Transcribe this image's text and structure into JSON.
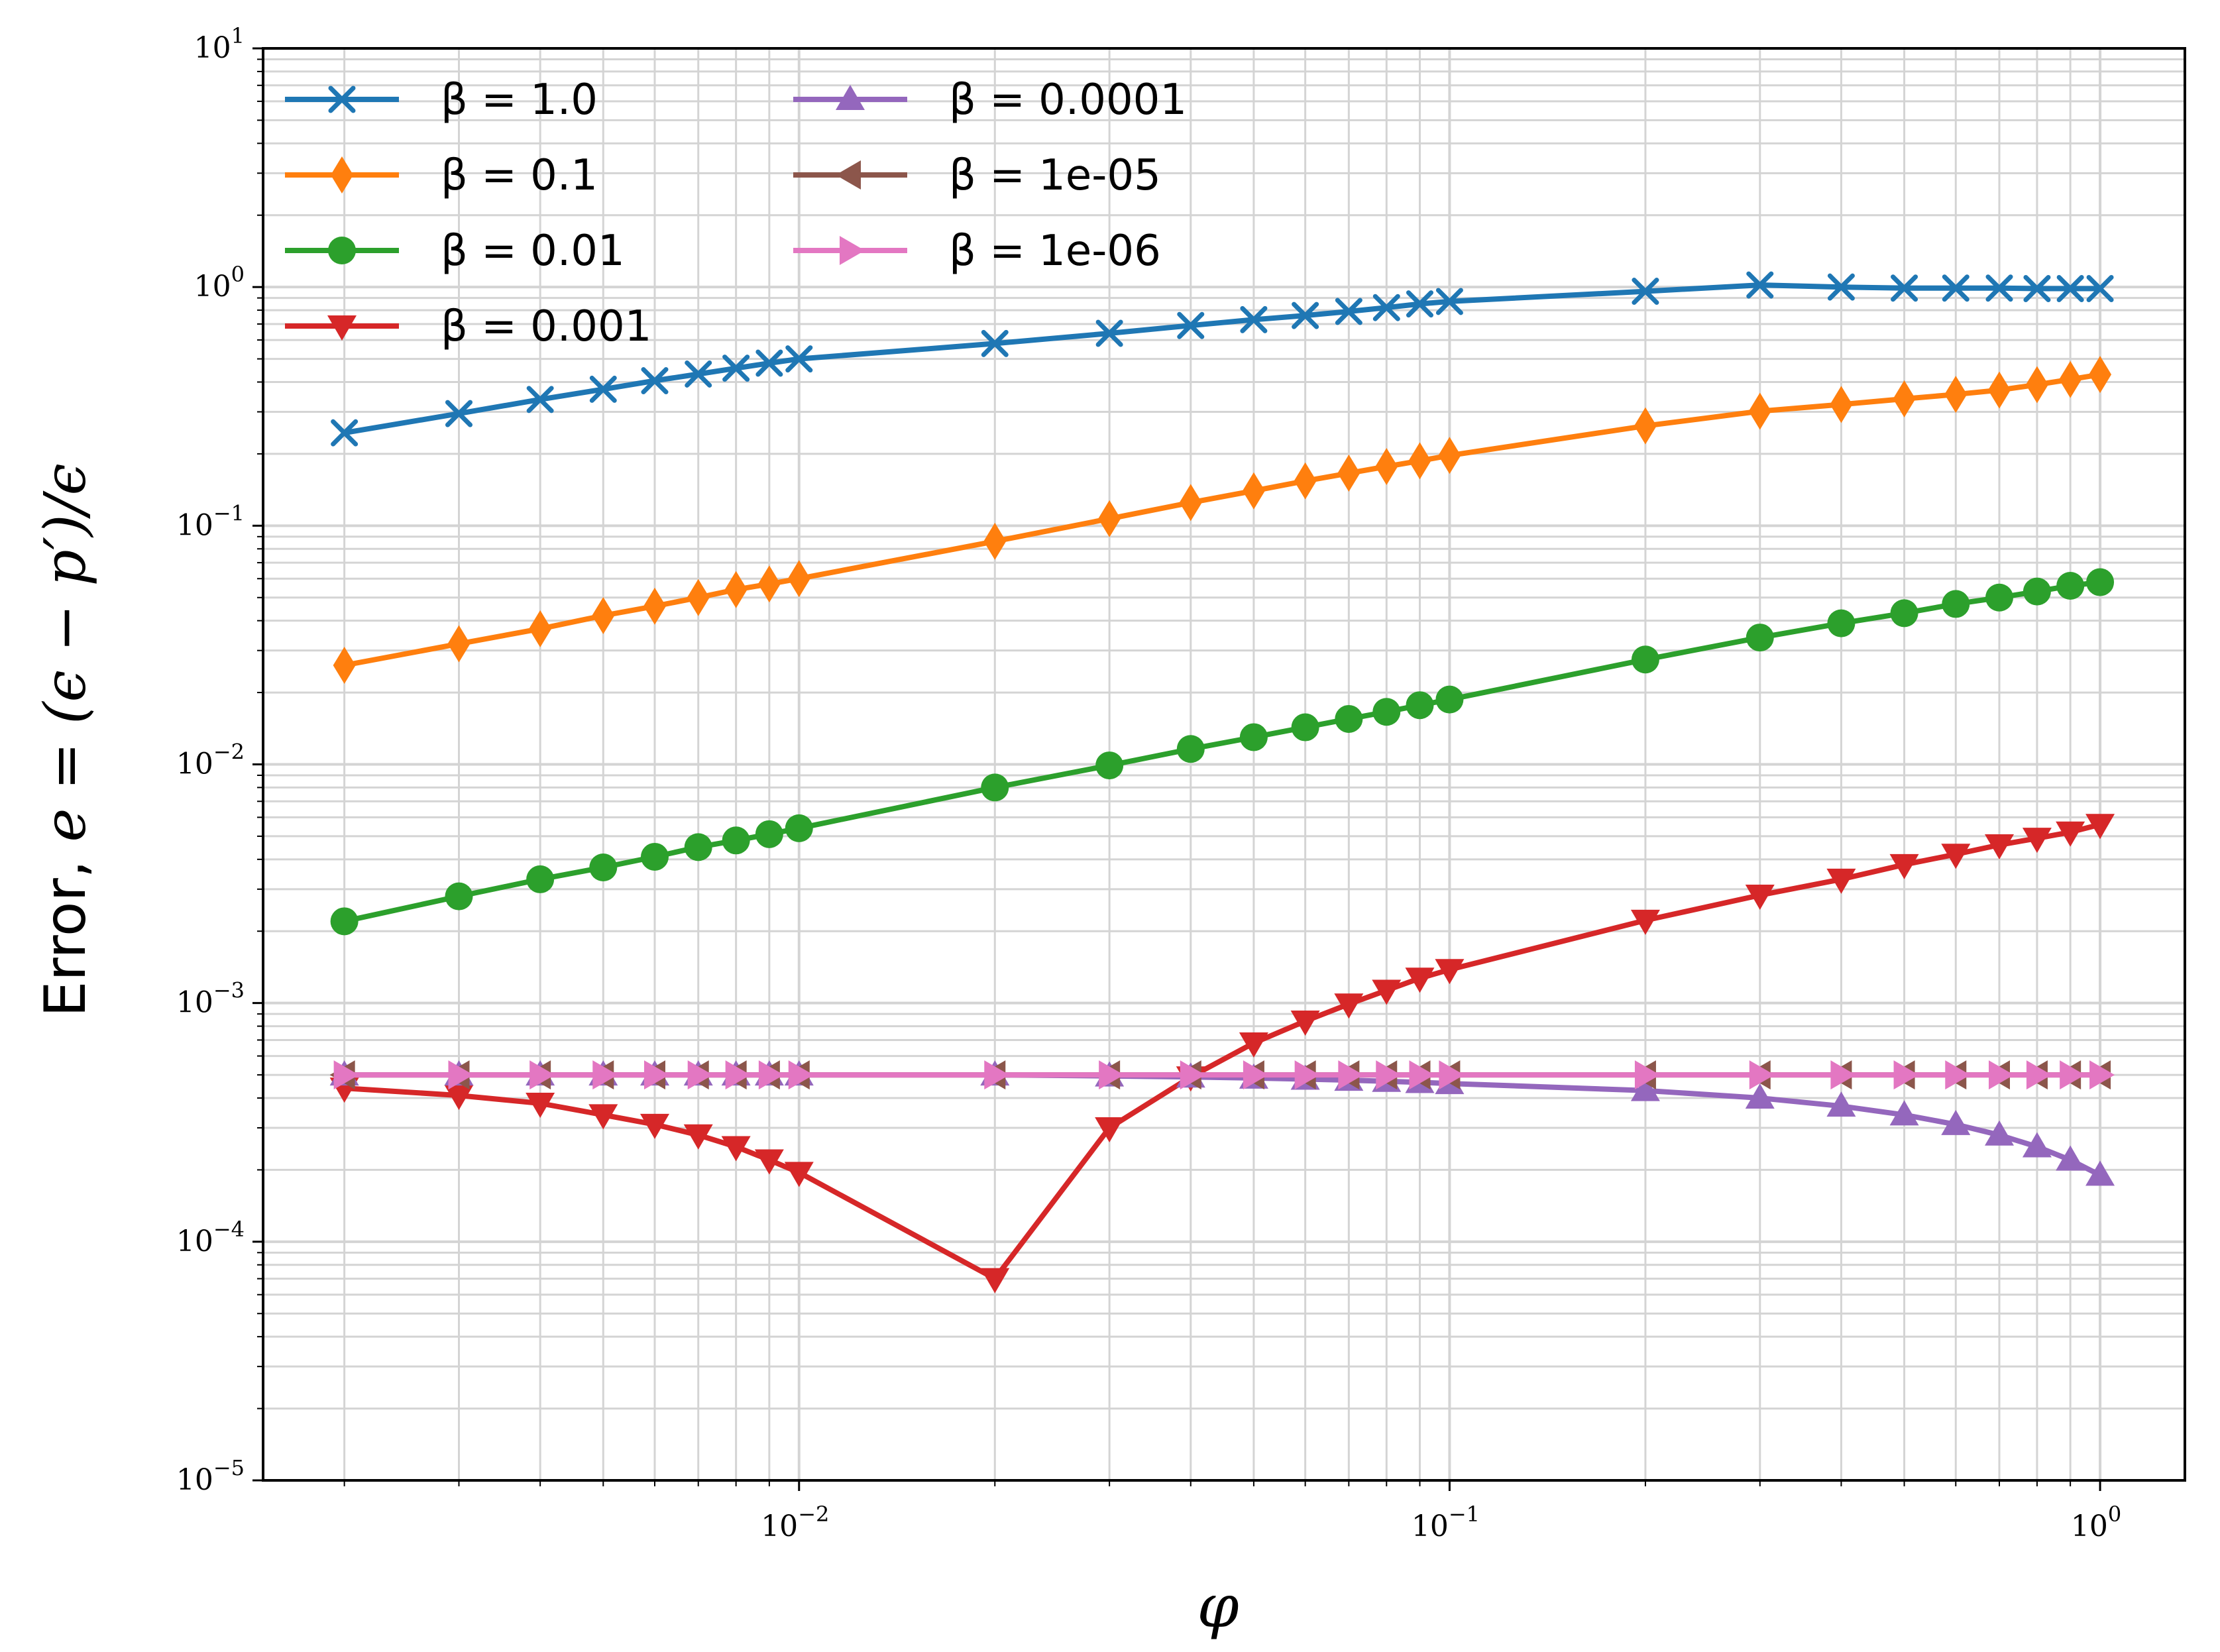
{
  "chart_data": {
    "type": "line",
    "xscale": "log",
    "yscale": "log",
    "xlim": [
      0.0015,
      1.35
    ],
    "ylim": [
      1e-05,
      10
    ],
    "grid": "major and minor",
    "legend_placement": "top-left",
    "legend_columns": 2,
    "xlabel": "φ",
    "ylabel_text": "Error, ",
    "ylabel_math": "e = (ϵ − p′)/ϵ",
    "x_ticks": [
      {
        "base": "10",
        "exp": "−2",
        "value": 0.01
      },
      {
        "base": "10",
        "exp": "−1",
        "value": 0.1
      },
      {
        "base": "10",
        "exp": "0",
        "value": 1
      }
    ],
    "y_ticks": [
      {
        "base": "10",
        "exp": "−5",
        "value": 1e-05
      },
      {
        "base": "10",
        "exp": "−4",
        "value": 0.0001
      },
      {
        "base": "10",
        "exp": "−3",
        "value": 0.001
      },
      {
        "base": "10",
        "exp": "−2",
        "value": 0.01
      },
      {
        "base": "10",
        "exp": "−1",
        "value": 0.1
      },
      {
        "base": "10",
        "exp": "0",
        "value": 1
      },
      {
        "base": "10",
        "exp": "1",
        "value": 10
      }
    ],
    "x": [
      0.002,
      0.003,
      0.004,
      0.005,
      0.006,
      0.007,
      0.008,
      0.009,
      0.01,
      0.02,
      0.03,
      0.04,
      0.05,
      0.06,
      0.07,
      0.08,
      0.09,
      0.1,
      0.2,
      0.3,
      0.4,
      0.5,
      0.6,
      0.7,
      0.8,
      0.9,
      1.0
    ],
    "series": [
      {
        "name": "β = 1.0",
        "color": "#1f77b4",
        "marker": "x",
        "values": [
          0.245,
          0.295,
          0.338,
          0.373,
          0.405,
          0.432,
          0.457,
          0.48,
          0.5,
          0.58,
          0.64,
          0.69,
          0.73,
          0.76,
          0.79,
          0.82,
          0.85,
          0.87,
          0.96,
          1.02,
          1.0,
          0.99,
          0.99,
          0.99,
          0.985,
          0.985,
          0.985
        ]
      },
      {
        "name": "β = 0.1",
        "color": "#ff7f0e",
        "marker": "thin_diamond",
        "values": [
          0.026,
          0.032,
          0.037,
          0.042,
          0.046,
          0.05,
          0.054,
          0.057,
          0.06,
          0.086,
          0.107,
          0.125,
          0.14,
          0.154,
          0.166,
          0.177,
          0.187,
          0.197,
          0.262,
          0.302,
          0.322,
          0.34,
          0.355,
          0.37,
          0.39,
          0.41,
          0.43
        ]
      },
      {
        "name": "β = 0.01",
        "color": "#2ca02c",
        "marker": "circle",
        "values": [
          0.0022,
          0.0028,
          0.0033,
          0.0037,
          0.0041,
          0.0045,
          0.0048,
          0.0051,
          0.0054,
          0.008,
          0.0099,
          0.0116,
          0.013,
          0.0143,
          0.0155,
          0.0166,
          0.0177,
          0.0187,
          0.0275,
          0.034,
          0.039,
          0.043,
          0.047,
          0.05,
          0.053,
          0.056,
          0.058
        ]
      },
      {
        "name": "β = 0.001",
        "color": "#d62728",
        "marker": "triangle_down",
        "values": [
          0.00044,
          0.00041,
          0.00038,
          0.00034,
          0.00031,
          0.00028,
          0.00025,
          0.00022,
          0.000195,
          7e-05,
          0.0003,
          0.00049,
          0.00068,
          0.00084,
          0.00099,
          0.00113,
          0.00127,
          0.00138,
          0.00222,
          0.00283,
          0.0033,
          0.0038,
          0.0042,
          0.0046,
          0.0049,
          0.0052,
          0.0056
        ]
      },
      {
        "name": "β = 0.0001",
        "color": "#9467bd",
        "marker": "triangle_up",
        "values": [
          0.0005,
          0.0005,
          0.0005,
          0.0005,
          0.0005,
          0.0005,
          0.0005,
          0.0005,
          0.0005,
          0.0005,
          0.000495,
          0.00049,
          0.000485,
          0.00048,
          0.000475,
          0.00047,
          0.000465,
          0.00046,
          0.00043,
          0.0004,
          0.00037,
          0.00034,
          0.00031,
          0.00028,
          0.00025,
          0.00022,
          0.00019
        ]
      },
      {
        "name": "β = 1e-05",
        "color": "#8c564b",
        "marker": "triangle_left",
        "values": [
          0.0005,
          0.0005,
          0.0005,
          0.0005,
          0.0005,
          0.0005,
          0.0005,
          0.0005,
          0.0005,
          0.0005,
          0.0005,
          0.0005,
          0.0005,
          0.0005,
          0.0005,
          0.0005,
          0.0005,
          0.0005,
          0.0005,
          0.0005,
          0.0005,
          0.0005,
          0.0005,
          0.0005,
          0.0005,
          0.0005,
          0.0005
        ]
      },
      {
        "name": "β = 1e-06",
        "color": "#e377c2",
        "marker": "triangle_right",
        "values": [
          0.0005,
          0.0005,
          0.0005,
          0.0005,
          0.0005,
          0.0005,
          0.0005,
          0.0005,
          0.0005,
          0.0005,
          0.0005,
          0.0005,
          0.0005,
          0.0005,
          0.0005,
          0.0005,
          0.0005,
          0.0005,
          0.0005,
          0.0005,
          0.0005,
          0.0005,
          0.0005,
          0.0005,
          0.0005,
          0.0005,
          0.0005
        ]
      }
    ]
  }
}
